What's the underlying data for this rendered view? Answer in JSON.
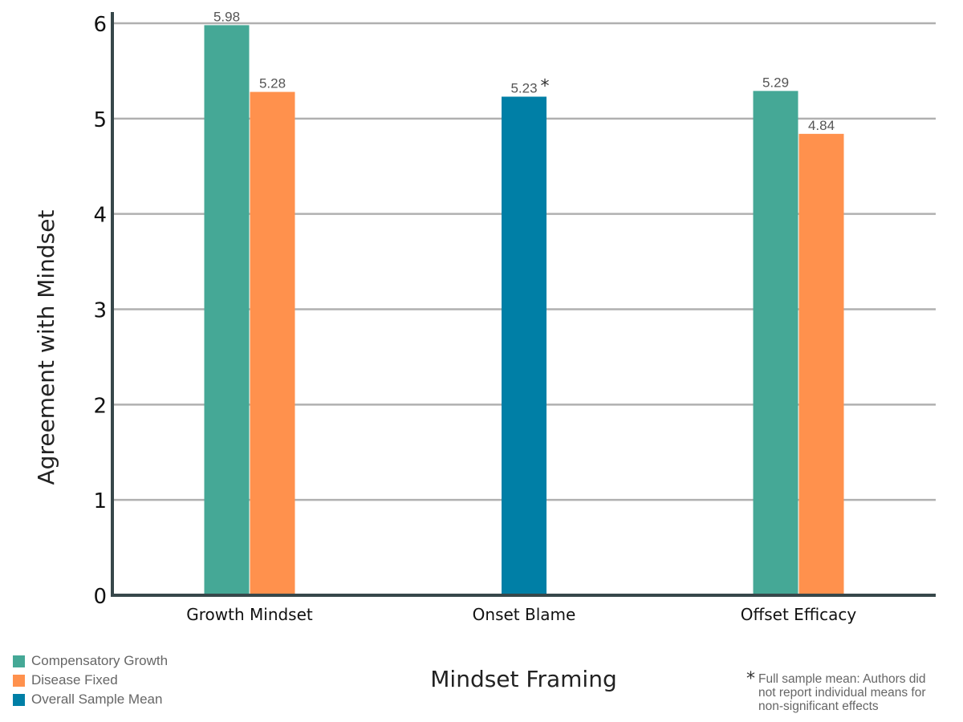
{
  "chart_data": {
    "type": "bar",
    "title": "",
    "xlabel": "Mindset Framing",
    "ylabel": "Agreement with Mindset",
    "ylim": [
      0,
      6
    ],
    "yticks": [
      "0",
      "1",
      "2",
      "3",
      "4",
      "5",
      "6"
    ],
    "grid": true,
    "legend_position": "bottom-left",
    "categories": [
      "Growth Mindset",
      "Onset Blame",
      "Offset Efficacy"
    ],
    "series": [
      {
        "name": "Compensatory Growth",
        "color": "#45a896",
        "values": [
          5.98,
          null,
          5.29
        ]
      },
      {
        "name": "Disease Fixed",
        "color": "#ff914d",
        "values": [
          5.28,
          null,
          4.84
        ]
      },
      {
        "name": "Overall Sample Mean",
        "color": "#007fa6",
        "values": [
          null,
          5.23,
          null
        ]
      }
    ],
    "data_labels": [
      {
        "category": "Growth Mindset",
        "series": "Compensatory Growth",
        "text": "5.98"
      },
      {
        "category": "Growth Mindset",
        "series": "Disease Fixed",
        "text": "5.28"
      },
      {
        "category": "Onset Blame",
        "series": "Overall Sample Mean",
        "text": "5.23",
        "marker": "*"
      },
      {
        "category": "Offset Efficacy",
        "series": "Compensatory Growth",
        "text": "5.29"
      },
      {
        "category": "Offset Efficacy",
        "series": "Disease Fixed",
        "text": "4.84"
      }
    ],
    "footnote": {
      "marker": "*",
      "lines": [
        "Full sample mean: Authors did",
        "not report individual means for",
        "non-significant effects"
      ]
    }
  }
}
